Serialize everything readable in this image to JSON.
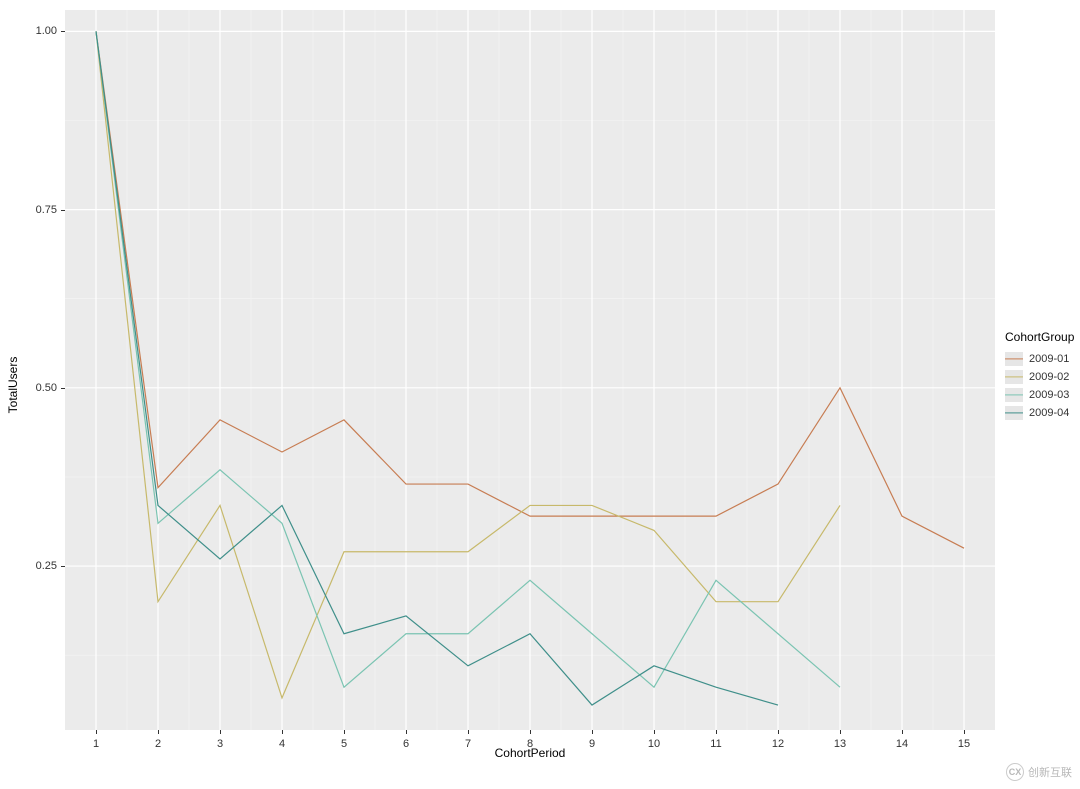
{
  "chart": {
    "type": "line",
    "background_color": "#ebebeb",
    "grid_major_color": "#ffffff",
    "grid_minor_color": "#f5f5f5",
    "grid_major_width": 1.2,
    "grid_minor_width": 0.6,
    "xlabel": "CohortPeriod",
    "ylabel": "TotalUsers",
    "label_fontsize": 12,
    "tick_fontsize": 11,
    "xlim": [
      0.5,
      15.5
    ],
    "ylim": [
      0.02,
      1.03
    ],
    "x_ticks": [
      1,
      2,
      3,
      4,
      5,
      6,
      7,
      8,
      9,
      10,
      11,
      12,
      13,
      14,
      15
    ],
    "y_ticks": [
      0.25,
      0.5,
      0.75,
      1.0
    ],
    "y_tick_labels": [
      "0.25",
      "0.50",
      "0.75",
      "1.00"
    ],
    "x_minor_ticks": [
      1.5,
      2.5,
      3.5,
      4.5,
      5.5,
      6.5,
      7.5,
      8.5,
      9.5,
      10.5,
      11.5,
      12.5,
      13.5,
      14.5
    ],
    "y_minor_ticks": [
      0.125,
      0.375,
      0.625,
      0.875
    ],
    "line_width": 1.2,
    "series": [
      {
        "name": "2009-01",
        "color": "#c77d53",
        "x": [
          1,
          2,
          3,
          4,
          5,
          6,
          7,
          8,
          9,
          10,
          11,
          12,
          13,
          14,
          15
        ],
        "y": [
          1.0,
          0.36,
          0.455,
          0.41,
          0.455,
          0.365,
          0.365,
          0.32,
          0.32,
          0.32,
          0.32,
          0.365,
          0.5,
          0.32,
          0.275
        ]
      },
      {
        "name": "2009-02",
        "color": "#c7b96b",
        "x": [
          1,
          2,
          3,
          4,
          5,
          6,
          7,
          8,
          9,
          10,
          11,
          12,
          13
        ],
        "y": [
          1.0,
          0.2,
          0.335,
          0.065,
          0.27,
          0.27,
          0.27,
          0.335,
          0.335,
          0.3,
          0.2,
          0.2,
          0.335
        ]
      },
      {
        "name": "2009-03",
        "color": "#7bc4b2",
        "x": [
          1,
          2,
          3,
          4,
          5,
          6,
          7,
          8,
          9,
          10,
          11,
          12,
          13
        ],
        "y": [
          1.0,
          0.31,
          0.385,
          0.31,
          0.08,
          0.155,
          0.155,
          0.23,
          0.155,
          0.08,
          0.23,
          0.155,
          0.08
        ]
      },
      {
        "name": "2009-04",
        "color": "#3f8f8a",
        "x": [
          1,
          2,
          3,
          4,
          5,
          6,
          7,
          8,
          9,
          10,
          11,
          12
        ],
        "y": [
          1.0,
          0.335,
          0.26,
          0.335,
          0.155,
          0.18,
          0.11,
          0.155,
          0.055,
          0.11,
          0.08,
          0.055
        ]
      }
    ],
    "legend": {
      "title": "CohortGroup",
      "title_fontsize": 12,
      "item_fontsize": 11,
      "swatch_bg": "#e6e6e6"
    }
  },
  "watermark": {
    "symbol": "CX",
    "text": "创新互联"
  }
}
